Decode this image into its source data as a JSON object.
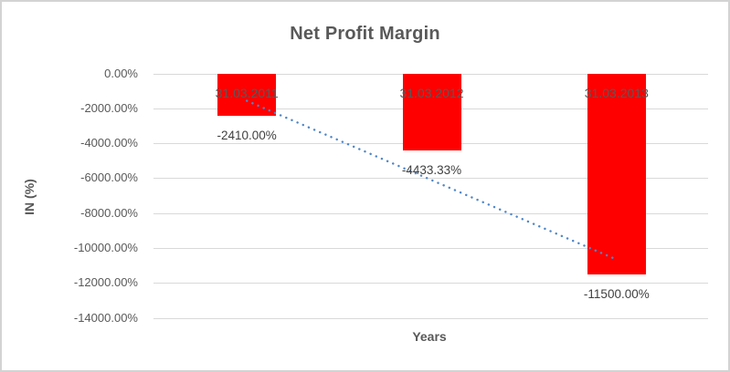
{
  "title": "Net Profit Margin",
  "axes": {
    "y_label": "IN (%)",
    "x_label": "Years"
  },
  "chart_data": {
    "type": "bar",
    "title": "Net Profit Margin",
    "xlabel": "Years",
    "ylabel": "IN (%)",
    "categories": [
      "31.03.2011",
      "31.03.2012",
      "31.03.2013"
    ],
    "values": [
      -2410.0,
      -4433.33,
      -11500.0
    ],
    "value_labels": [
      "-2410.00%",
      "-4433.33%",
      "-11500.00%"
    ],
    "ytick_labels": [
      "0.00%",
      "-2000.00%",
      "-4000.00%",
      "-6000.00%",
      "-8000.00%",
      "-10000.00%",
      "-12000.00%",
      "-14000.00%"
    ],
    "ylim": [
      -14000,
      0
    ],
    "ytick_step": 2000,
    "grid": true,
    "legend": "none",
    "bar_color": "#ff0000",
    "trendline": {
      "type": "linear",
      "style": "dotted",
      "color": "#4e86c8",
      "points": [
        {
          "cat": 0.5,
          "value": -1569.4
        },
        {
          "cat": 2.5,
          "value": -10659.4
        }
      ]
    },
    "colors": {
      "grid": "#d9d9d9",
      "axis_text": "#595959",
      "value_label_text": "#404040",
      "frame_border": "#d3d3d3"
    }
  }
}
